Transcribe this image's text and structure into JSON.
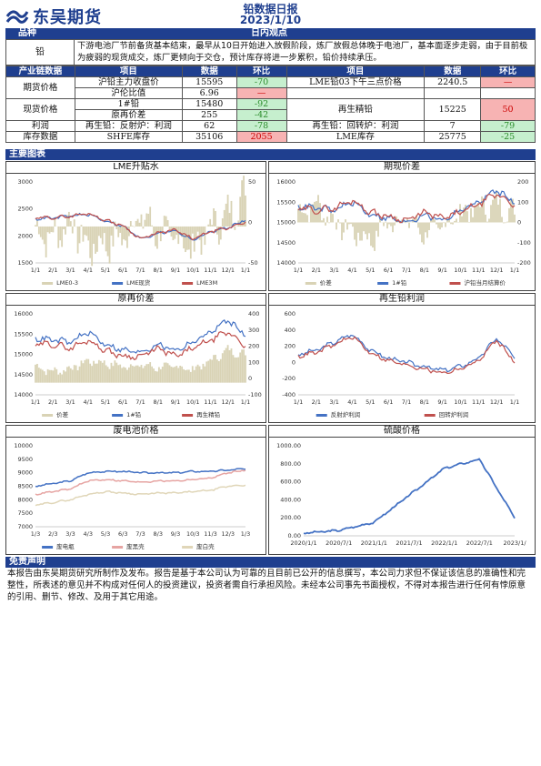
{
  "header": {
    "logo_text": "东吴期货",
    "title": "铅数据日报",
    "date": "2023/1/10"
  },
  "sections": {
    "product_label": "品种",
    "view_label": "日内观点",
    "charts_label": "主要图表",
    "disclaimer_label": "免责声明"
  },
  "product": "铅",
  "view": "下游电池厂节前备货基本结束，最早从10日开始进入放假阶段，炼厂放假总体晚于电池厂，基本面逐步走弱，由于目前极为疲弱的现货成交，炼厂更倾向于交仓，预计库存将进一步累积，铅价持续承压。",
  "table": {
    "headers": [
      "产业链数据",
      "项目",
      "数据",
      "环比",
      "项目",
      "数据",
      "环比"
    ],
    "groups": {
      "futures": "期货价格",
      "spot": "现货价格",
      "profit": "利润",
      "inventory": "库存数据"
    },
    "rows": [
      {
        "item": "沪铅主力收盘价",
        "value": "15595",
        "chg": "-70",
        "item2": "LME铅03下午三点价格",
        "value2": "2240.5",
        "chg2": "—"
      },
      {
        "item": "沪伦比值",
        "value": "6.96",
        "chg": "—",
        "item2": "",
        "value2": "",
        "chg2": ""
      },
      {
        "item": "1#铅",
        "value": "15480",
        "chg": "-92",
        "item2": "再生精铅",
        "value2": "15225",
        "chg2": "50"
      },
      {
        "item": "原再价差",
        "value": "255",
        "chg": "-42",
        "item2": "",
        "value2": "",
        "chg2": ""
      },
      {
        "item": "再生铅：反射炉：利润",
        "value": "62",
        "chg": "-78",
        "item2": "再生铅：回转炉：利润",
        "value2": "7",
        "chg2": "-79"
      },
      {
        "item": "SHFE库存",
        "value": "35106",
        "chg": "2055",
        "item2": "LME库存",
        "value2": "25775",
        "chg2": "-25"
      }
    ]
  },
  "charts": {
    "c1": {
      "title": "LME升贴水",
      "yleft": [
        "3000",
        "2500",
        "2000",
        "1500"
      ],
      "yright": [
        "50",
        "0",
        "-50"
      ],
      "x": [
        "1/1",
        "2/1",
        "3/1",
        "4/1",
        "5/1",
        "6/1",
        "7/1",
        "8/1",
        "9/1",
        "10/1",
        "11/1",
        "12/1",
        "1/1"
      ],
      "legend": [
        "LME0-3",
        "LME现货",
        "LME3M"
      ]
    },
    "c2": {
      "title": "期现价差",
      "yleft": [
        "16000",
        "15500",
        "15000",
        "14500",
        "14000"
      ],
      "yright": [
        "200",
        "100",
        "0",
        "-100",
        "-200"
      ],
      "x": [
        "1/1",
        "2/1",
        "3/1",
        "4/1",
        "5/1",
        "6/1",
        "7/1",
        "8/1",
        "9/1",
        "10/1",
        "11/1",
        "12/1",
        "1/1"
      ],
      "legend": [
        "价差",
        "1#铅",
        "沪铅当月结算价"
      ]
    },
    "c3": {
      "title": "原再价差",
      "yleft": [
        "16000",
        "15500",
        "15000",
        "14500",
        "14000"
      ],
      "yright": [
        "400",
        "300",
        "200",
        "100",
        "0",
        "-100"
      ],
      "x": [
        "1/1",
        "2/1",
        "3/1",
        "4/1",
        "5/1",
        "6/1",
        "7/1",
        "8/1",
        "9/1",
        "10/1",
        "11/1",
        "12/1",
        "1/1"
      ],
      "legend": [
        "价差",
        "1#铅",
        "再生精铅"
      ]
    },
    "c4": {
      "title": "再生铅利润",
      "yleft": [
        "600",
        "400",
        "200",
        "0",
        "-200",
        "-400"
      ],
      "x": [
        "1/1",
        "2/1",
        "3/1",
        "4/1",
        "5/1",
        "6/1",
        "7/1",
        "8/1",
        "9/1",
        "10/1",
        "11/1",
        "12/1",
        "1/1"
      ],
      "legend": [
        "反射炉利润",
        "回转炉利润"
      ]
    },
    "c5": {
      "title": "废电池价格",
      "yleft": [
        "10000",
        "9500",
        "9000",
        "8500",
        "8000",
        "7500",
        "7000"
      ],
      "x": [
        "1/3",
        "2/3",
        "3/3",
        "4/3",
        "5/3",
        "6/3",
        "7/3",
        "8/3",
        "9/3",
        "10/3",
        "11/3",
        "12/3",
        "1/3"
      ],
      "legend": [
        "废电瓶",
        "废黑壳",
        "废白壳"
      ]
    },
    "c6": {
      "title": "硫酸价格",
      "yleft": [
        "1000.00",
        "800.00",
        "600.00",
        "400.00",
        "200.00",
        "0.00"
      ],
      "x": [
        "2020/1/1",
        "2020/7/1",
        "2021/1/1",
        "2021/7/1",
        "2022/1/1",
        "2022/7/1",
        "2023/1/"
      ]
    }
  },
  "chart_data": [
    {
      "type": "line",
      "title": "LME升贴水",
      "x": [
        "1/1",
        "2/1",
        "3/1",
        "4/1",
        "5/1",
        "6/1",
        "7/1",
        "8/1",
        "9/1",
        "10/1",
        "11/1",
        "12/1",
        "1/1"
      ],
      "series": [
        {
          "name": "LME0-3",
          "values": [
            -5,
            -10,
            5,
            -20,
            -15,
            -10,
            10,
            -5,
            -10,
            -20,
            0,
            10,
            30
          ]
        },
        {
          "name": "LME现货",
          "values": [
            2320,
            2330,
            2370,
            2400,
            2280,
            2180,
            1950,
            2050,
            2100,
            1920,
            2080,
            2150,
            2300
          ]
        },
        {
          "name": "LME3M",
          "values": [
            2330,
            2340,
            2365,
            2420,
            2290,
            2190,
            1945,
            2055,
            2110,
            1940,
            2080,
            2140,
            2270
          ]
        }
      ],
      "ylim": [
        1500,
        3000
      ]
    },
    {
      "type": "line",
      "title": "期现价差",
      "x": [
        "1/1",
        "2/1",
        "3/1",
        "4/1",
        "5/1",
        "6/1",
        "7/1",
        "8/1",
        "9/1",
        "10/1",
        "11/1",
        "12/1",
        "1/1"
      ],
      "series": [
        {
          "name": "价差",
          "values": [
            50,
            100,
            0,
            -50,
            -100,
            0,
            20,
            -60,
            -20,
            50,
            80,
            100,
            50
          ]
        },
        {
          "name": "1#铅",
          "values": [
            15400,
            15350,
            15300,
            15500,
            15200,
            15100,
            15000,
            15200,
            15050,
            15300,
            15500,
            15800,
            15500
          ]
        },
        {
          "name": "沪铅当月结算价",
          "values": [
            15350,
            15300,
            15350,
            15550,
            15250,
            15150,
            15050,
            15250,
            15100,
            15250,
            15450,
            15700,
            15450
          ]
        }
      ],
      "ylim": [
        14000,
        16000
      ]
    },
    {
      "type": "line",
      "title": "原再价差",
      "x": [
        "1/1",
        "2/1",
        "3/1",
        "4/1",
        "5/1",
        "6/1",
        "7/1",
        "8/1",
        "9/1",
        "10/1",
        "11/1",
        "12/1",
        "1/1"
      ],
      "series": [
        {
          "name": "价差",
          "values": [
            150,
            100,
            130,
            200,
            180,
            150,
            160,
            140,
            150,
            120,
            200,
            300,
            255
          ]
        },
        {
          "name": "1#铅",
          "values": [
            15400,
            15350,
            15300,
            15550,
            15250,
            15100,
            15050,
            15250,
            15100,
            15300,
            15550,
            15850,
            15480
          ]
        },
        {
          "name": "再生精铅",
          "values": [
            15250,
            15250,
            15150,
            15350,
            15100,
            14950,
            14950,
            15150,
            14950,
            15150,
            15350,
            15550,
            15225
          ]
        }
      ],
      "ylim": [
        14000,
        16000
      ]
    },
    {
      "type": "line",
      "title": "再生铅利润",
      "x": [
        "1/1",
        "2/1",
        "3/1",
        "4/1",
        "5/1",
        "6/1",
        "7/1",
        "8/1",
        "9/1",
        "10/1",
        "11/1",
        "12/1",
        "1/1"
      ],
      "series": [
        {
          "name": "反射炉利润",
          "values": [
            100,
            150,
            250,
            350,
            150,
            50,
            0,
            -50,
            -100,
            -50,
            50,
            300,
            62
          ]
        },
        {
          "name": "回转炉利润",
          "values": [
            80,
            120,
            220,
            320,
            120,
            20,
            -30,
            -80,
            -130,
            -80,
            20,
            280,
            7
          ]
        }
      ],
      "ylim": [
        -400,
        600
      ]
    },
    {
      "type": "line",
      "title": "废电池价格",
      "x": [
        "1/3",
        "2/3",
        "3/3",
        "4/3",
        "5/3",
        "6/3",
        "7/3",
        "8/3",
        "9/3",
        "10/3",
        "11/3",
        "12/3",
        "1/3"
      ],
      "series": [
        {
          "name": "废电瓶",
          "values": [
            8500,
            8600,
            8700,
            9000,
            9050,
            9050,
            9000,
            9000,
            9000,
            9050,
            9050,
            9100,
            9150
          ]
        },
        {
          "name": "废黑壳",
          "values": [
            8200,
            8300,
            8400,
            8700,
            8750,
            8700,
            8650,
            8700,
            8700,
            8750,
            8800,
            9000,
            9100
          ]
        },
        {
          "name": "废白壳",
          "values": [
            7800,
            7900,
            8000,
            8200,
            8300,
            8250,
            8200,
            8250,
            8250,
            8300,
            8350,
            8500,
            8550
          ]
        }
      ],
      "ylim": [
        7000,
        10000
      ]
    },
    {
      "type": "line",
      "title": "硫酸价格",
      "x": [
        "2020/1/1",
        "2020/7/1",
        "2021/1/1",
        "2021/7/1",
        "2022/1/1",
        "2022/7/1",
        "2023/1/"
      ],
      "series": [
        {
          "values": [
            30,
            60,
            150,
            450,
            750,
            850,
            200
          ]
        }
      ],
      "ylim": [
        0,
        1000
      ]
    }
  ],
  "disclaimer": "本报告由东吴期货研究所制作及发布。报告是基于本公司认为可靠的且目前已公开的信息撰写，本公司力求但不保证该信息的准确性和完整性，所表述的意见并不构成对任何人的投资建议，投资者需自行承担风险。未经本公司事先书面授权，不得对本报告进行任何有悖原意的引用、删节、修改、及用于其它用途。",
  "colors": {
    "brand": "#1f3f8f",
    "up": "#f7b3b3",
    "down": "#c6efce",
    "blue": "#4472c4",
    "red": "#c0504d",
    "beige": "#d9d3b5"
  }
}
